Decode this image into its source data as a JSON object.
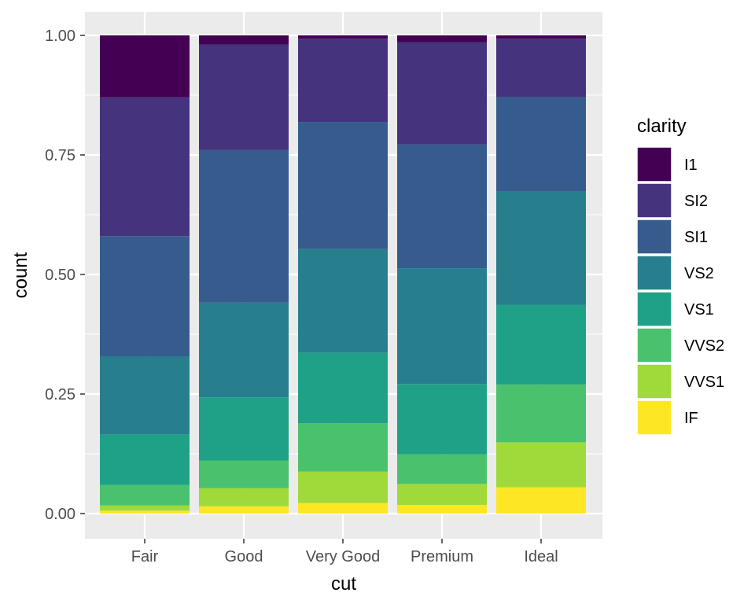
{
  "chart_data": {
    "type": "bar",
    "stacking": "fill",
    "xlabel": "cut",
    "ylabel": "count",
    "categories": [
      "Fair",
      "Good",
      "Very Good",
      "Premium",
      "Ideal"
    ],
    "ylim": [
      0,
      1
    ],
    "y_ticks": [
      0,
      0.25,
      0.5,
      0.75,
      1.0
    ],
    "y_tick_labels": [
      "0.00",
      "0.25",
      "0.50",
      "0.75",
      "1.00"
    ],
    "grid": true,
    "legend": {
      "title": "clarity",
      "placement": "right"
    },
    "series": [
      {
        "name": "I1",
        "color": "#440154",
        "values": [
          0.13,
          0.019,
          0.007,
          0.014,
          0.007
        ]
      },
      {
        "name": "SI2",
        "color": "#46337E",
        "values": [
          0.291,
          0.221,
          0.174,
          0.214,
          0.122
        ]
      },
      {
        "name": "SI1",
        "color": "#365C8D",
        "values": [
          0.253,
          0.319,
          0.266,
          0.259,
          0.198
        ]
      },
      {
        "name": "VS2",
        "color": "#277F8E",
        "values": [
          0.163,
          0.198,
          0.217,
          0.242,
          0.237
        ]
      },
      {
        "name": "VS1",
        "color": "#1FA187",
        "values": [
          0.106,
          0.132,
          0.147,
          0.147,
          0.166
        ]
      },
      {
        "name": "VVS2",
        "color": "#4AC16D",
        "values": [
          0.043,
          0.058,
          0.101,
          0.062,
          0.121
        ]
      },
      {
        "name": "VVS1",
        "color": "#9FDA3A",
        "values": [
          0.011,
          0.038,
          0.066,
          0.044,
          0.094
        ]
      },
      {
        "name": "IF",
        "color": "#FDE725",
        "values": [
          0.006,
          0.015,
          0.022,
          0.018,
          0.055
        ]
      }
    ]
  }
}
